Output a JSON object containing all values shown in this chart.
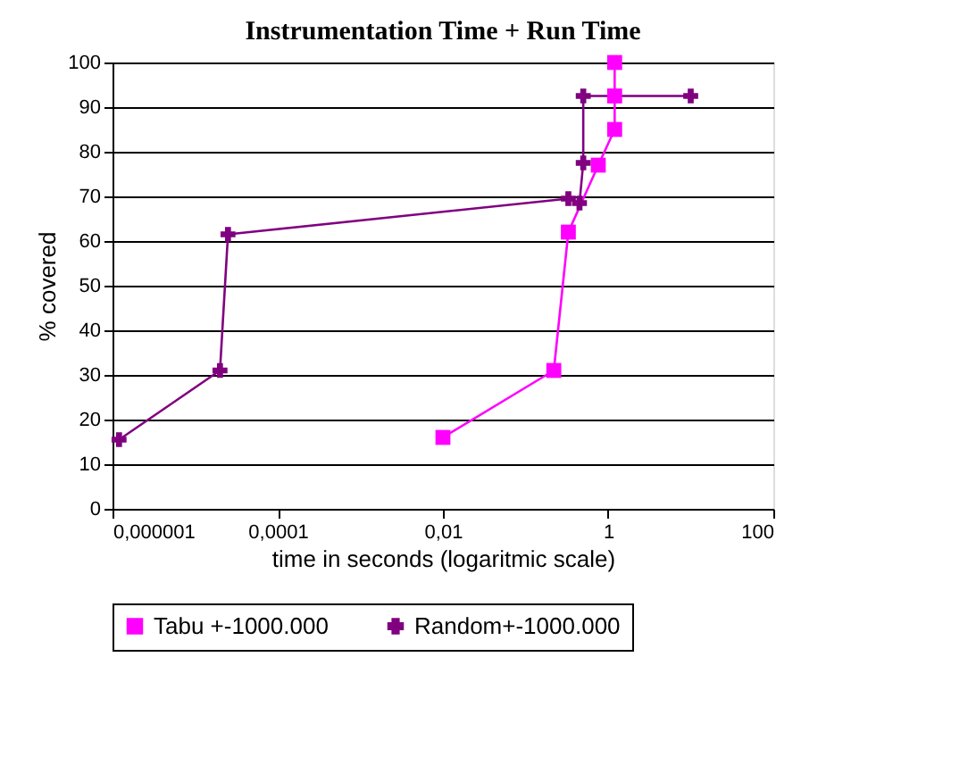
{
  "chart_data": {
    "type": "line",
    "title": "Instrumentation Time + Run Time",
    "xlabel": "time in seconds (logaritmic scale)",
    "ylabel": "% covered",
    "log": "x",
    "xlim": [
      1e-06,
      100
    ],
    "xticks": [
      {
        "value": 1e-06,
        "label": "0,000001"
      },
      {
        "value": 0.0001,
        "label": "0,0001"
      },
      {
        "value": 0.01,
        "label": "0,01"
      },
      1,
      100
    ],
    "ylim": [
      0,
      100
    ],
    "yticks": [
      0,
      10,
      20,
      30,
      40,
      50,
      60,
      70,
      80,
      90,
      100
    ],
    "grid": "y",
    "legend": "bottom",
    "series": [
      {
        "name": "Tabu +-1000.000",
        "color": "#ff00ff",
        "marker": "square",
        "x": [
          0.01,
          0.22,
          0.33,
          0.76,
          1.2,
          1.2,
          1.2
        ],
        "values": [
          16,
          31,
          62,
          77,
          85,
          92.5,
          100
        ]
      },
      {
        "name": "Random+-1000.000",
        "color": "#800080",
        "marker": "cross",
        "x": [
          1.2e-06,
          2e-05,
          2.5e-05,
          0.33,
          0.45,
          0.5,
          0.5,
          10
        ],
        "values": [
          15.5,
          31,
          61.5,
          69.5,
          68.5,
          77.5,
          92.5,
          92.5
        ]
      }
    ]
  }
}
